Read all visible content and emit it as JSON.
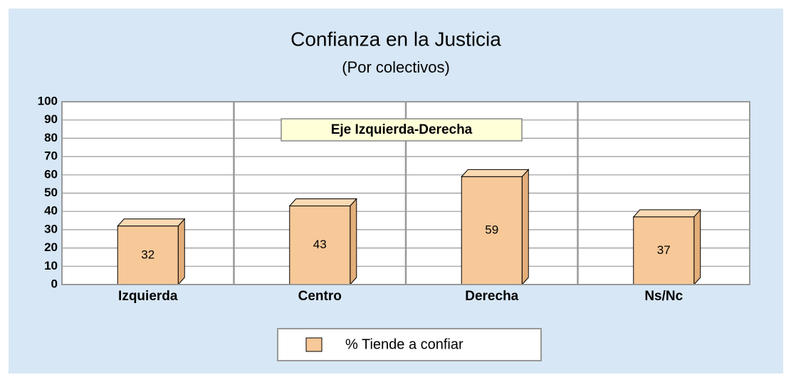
{
  "chart_data": {
    "type": "bar3d",
    "title": "Confianza en la Justicia",
    "subtitle": "(Por colectivos)",
    "annotation": "Eje Izquierda-Derecha",
    "categories": [
      "Izquierda",
      "Centro",
      "Derecha",
      "Ns/Nc"
    ],
    "series": [
      {
        "name": "% Tiende a confiar",
        "color": "#f7c898",
        "values": [
          32,
          43,
          59,
          37
        ]
      }
    ],
    "ylim": [
      0,
      100
    ],
    "yticks": [
      0,
      10,
      20,
      30,
      40,
      50,
      60,
      70,
      80,
      90,
      100
    ],
    "grid": true,
    "legend": "bottom"
  }
}
